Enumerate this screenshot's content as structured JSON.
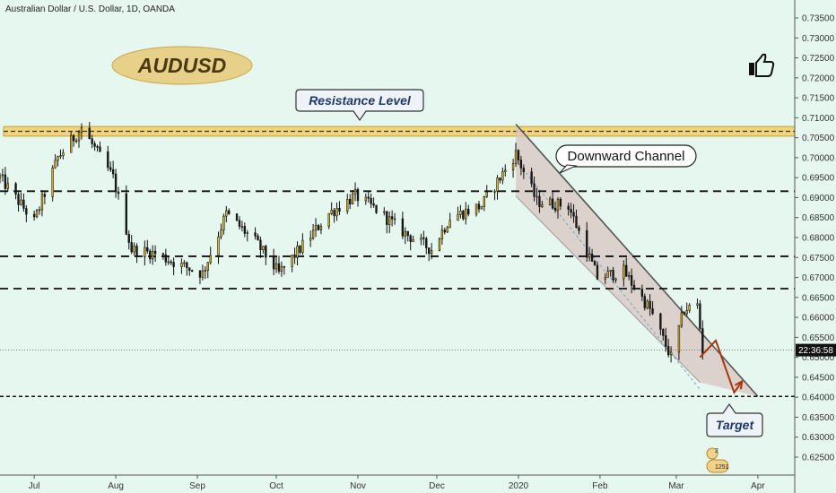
{
  "header": {
    "title": "Australian Dollar / U.S. Dollar, 1D, OANDA"
  },
  "badge": {
    "symbol": "AUDUSD"
  },
  "icons": {
    "thumb": "thumbs-up-icon",
    "idea": "idea-badge-icon"
  },
  "idea_counts": {
    "comments": "2",
    "likes": "1251"
  },
  "annotations": {
    "resistance": "Resistance Level",
    "channel": "Downward Channel",
    "target": "Target"
  },
  "price_label": "22:36:58",
  "colors": {
    "background": "#e6f7ef",
    "bull": "#f0c020",
    "bear": "#1a1a1a",
    "resistance_zone": "#f2cf6a",
    "channel_fill": "#d8c6c2",
    "projection": "#a8360a"
  },
  "chart_data": {
    "type": "candlestick",
    "title": "Australian Dollar / U.S. Dollar, 1D, OANDA",
    "y_axis": {
      "side": "right",
      "ylim": [
        0.6205,
        0.7395
      ],
      "ticks": [
        "0.73500",
        "0.73000",
        "0.72500",
        "0.72000",
        "0.71500",
        "0.71000",
        "0.70500",
        "0.70000",
        "0.69500",
        "0.69000",
        "0.68500",
        "0.68000",
        "0.67500",
        "0.67000",
        "0.66500",
        "0.66000",
        "0.65500",
        "0.65000",
        "0.64500",
        "0.64000",
        "0.63500",
        "0.63000",
        "0.62500"
      ]
    },
    "x_axis": {
      "ticks": [
        "Jul",
        "Aug",
        "Sep",
        "Oct",
        "Nov",
        "Dec",
        "2020",
        "Feb",
        "Mar",
        "Apr"
      ]
    },
    "resistance_zone": [
      0.7054,
      0.7078
    ],
    "horizontal_levels": [
      0.6916,
      0.6753,
      0.6672
    ],
    "target_level": 0.6402,
    "last_price_line": 0.6518,
    "channel": {
      "upper": [
        [
          "2019-12-31",
          0.7084
        ],
        [
          "2020-04-01",
          0.6402
        ]
      ],
      "lower": [
        [
          "2019-12-31",
          0.6904
        ],
        [
          "2020-03-10",
          0.6437
        ]
      ],
      "midline": true
    },
    "projected_path": [
      [
        "2020-03-10",
        0.65
      ],
      [
        "2020-03-16",
        0.6542
      ],
      [
        "2020-03-23",
        0.6412
      ],
      [
        "2020-03-26",
        0.644
      ]
    ],
    "price_path": [
      [
        "2019-06-18",
        0.695
      ],
      [
        "2019-07-01",
        0.684
      ],
      [
        "2019-07-10",
        0.7
      ],
      [
        "2019-07-19",
        0.7075
      ],
      [
        "2019-07-31",
        0.695
      ],
      [
        "2019-08-07",
        0.677
      ],
      [
        "2019-08-16",
        0.676
      ],
      [
        "2019-08-26",
        0.673
      ],
      [
        "2019-09-03",
        0.671
      ],
      [
        "2019-09-12",
        0.686
      ],
      [
        "2019-09-23",
        0.679
      ],
      [
        "2019-10-02",
        0.671
      ],
      [
        "2019-10-11",
        0.678
      ],
      [
        "2019-10-21",
        0.686
      ],
      [
        "2019-10-31",
        0.6905
      ],
      [
        "2019-11-08",
        0.687
      ],
      [
        "2019-11-19",
        0.681
      ],
      [
        "2019-11-29",
        0.677
      ],
      [
        "2019-12-06",
        0.685
      ],
      [
        "2019-12-18",
        0.688
      ],
      [
        "2019-12-26",
        0.696
      ],
      [
        "2019-12-31",
        0.701
      ],
      [
        "2020-01-08",
        0.689
      ],
      [
        "2020-01-20",
        0.688
      ],
      [
        "2020-01-31",
        0.67
      ],
      [
        "2020-02-10",
        0.6715
      ],
      [
        "2020-02-20",
        0.662
      ],
      [
        "2020-02-28",
        0.65
      ],
      [
        "2020-03-04",
        0.662
      ],
      [
        "2020-03-09",
        0.663
      ],
      [
        "2020-03-11",
        0.6518
      ]
    ]
  }
}
